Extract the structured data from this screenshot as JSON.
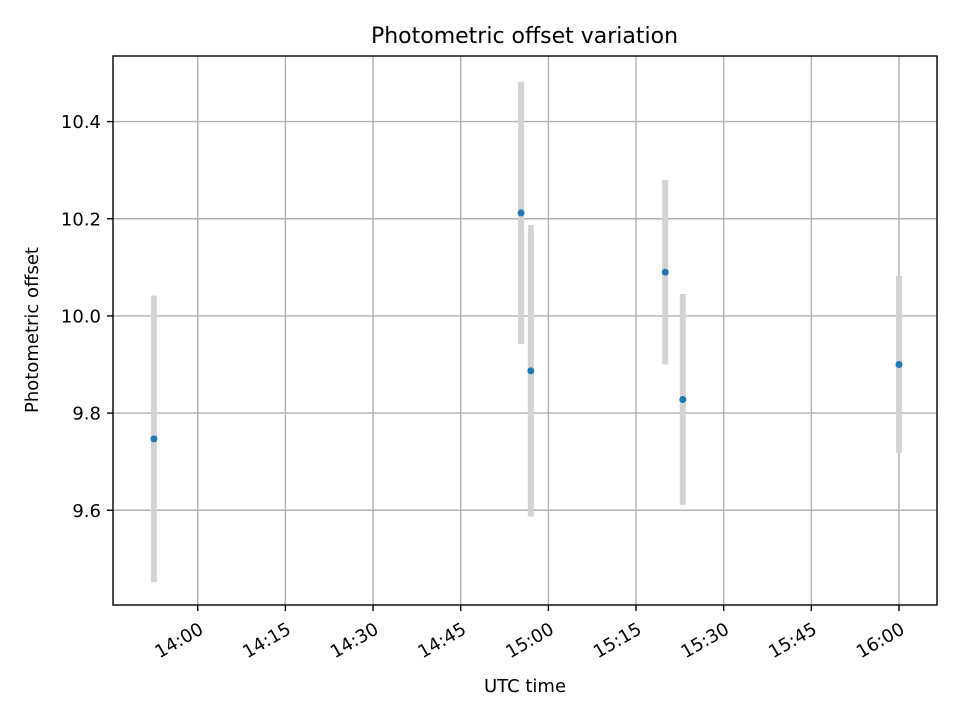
{
  "chart_data": {
    "type": "scatter",
    "title": "Photometric offset variation",
    "xlabel": "UTC time",
    "ylabel": "Photometric offset",
    "x_ticks": [
      "14:00",
      "14:15",
      "14:30",
      "14:45",
      "15:00",
      "15:15",
      "15:30",
      "15:45",
      "16:00"
    ],
    "y_ticks": [
      9.6,
      9.8,
      10.0,
      10.2,
      10.4
    ],
    "xlim": [
      "13:45:30",
      "16:06:30"
    ],
    "ylim": [
      9.405,
      10.535
    ],
    "grid": true,
    "point_color": "#1f77b4",
    "errorbar_color": "#d3d3d3",
    "points": [
      {
        "time": "13:52:30",
        "y": 9.747,
        "err": 0.295
      },
      {
        "time": "14:55:20",
        "y": 10.212,
        "err": 0.27
      },
      {
        "time": "14:57:00",
        "y": 9.887,
        "err": 0.3
      },
      {
        "time": "15:20:00",
        "y": 10.09,
        "err": 0.19
      },
      {
        "time": "15:23:00",
        "y": 9.828,
        "err": 0.217
      },
      {
        "time": "16:00:00",
        "y": 9.9,
        "err": 0.182
      }
    ]
  }
}
